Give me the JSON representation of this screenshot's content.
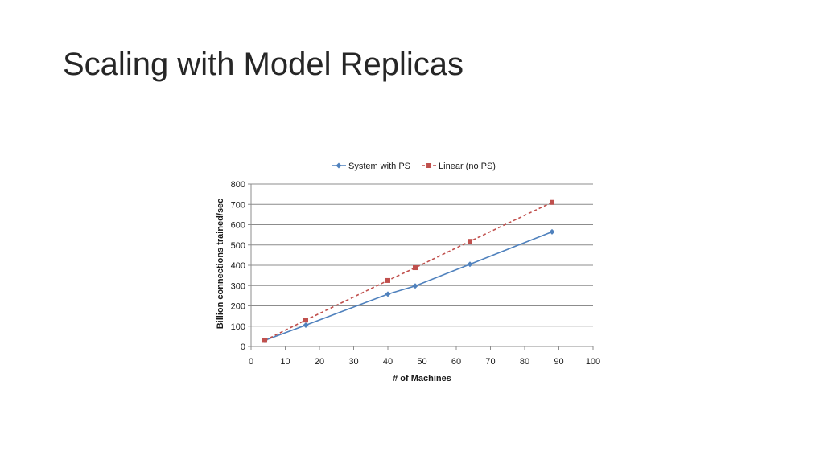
{
  "slide": {
    "title": "Scaling with Model Replicas"
  },
  "chart_data": {
    "type": "line",
    "title": "",
    "xlabel": "# of Machines",
    "ylabel": "Billion connections  trained/sec",
    "xlim": [
      0,
      100
    ],
    "ylim": [
      0,
      800
    ],
    "xticks": [
      0,
      10,
      20,
      30,
      40,
      50,
      60,
      70,
      80,
      90,
      100
    ],
    "yticks": [
      0,
      100,
      200,
      300,
      400,
      500,
      600,
      700,
      800
    ],
    "grid": "horizontal",
    "legend_position": "top",
    "series": [
      {
        "name": "System with PS",
        "color": "#4f81bd",
        "marker": "diamond",
        "line_style": "solid",
        "x": [
          4,
          16,
          40,
          48,
          64,
          88
        ],
        "y": [
          30,
          105,
          258,
          298,
          405,
          565
        ]
      },
      {
        "name": "Linear (no PS)",
        "color": "#c0504d",
        "marker": "square",
        "line_style": "dashed",
        "x": [
          4,
          16,
          40,
          48,
          64,
          88
        ],
        "y": [
          30,
          130,
          325,
          388,
          518,
          710
        ]
      }
    ]
  }
}
